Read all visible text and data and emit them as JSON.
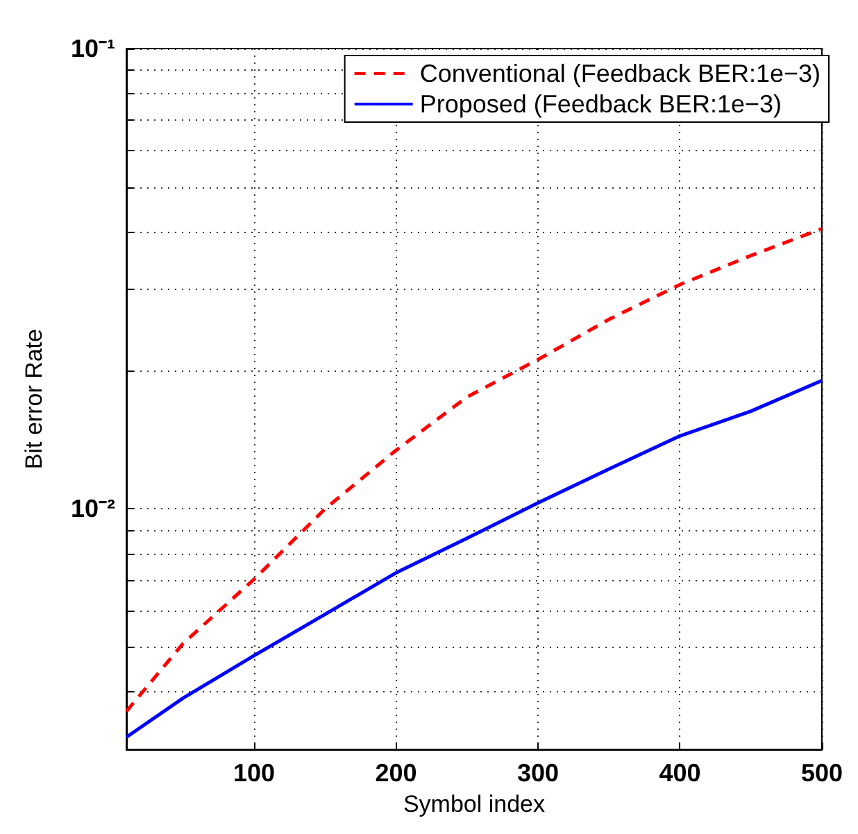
{
  "chart_data": {
    "type": "line",
    "xlabel": "Symbol index",
    "ylabel": "Bit error Rate",
    "log": "y",
    "grid": true,
    "legend": "top right",
    "xlim": [
      10,
      500
    ],
    "xticks": [
      100,
      200,
      300,
      400,
      500
    ],
    "ylim": [
      0.003,
      0.1
    ],
    "yticks": [
      {
        "value": 0.004,
        "label": null
      },
      {
        "value": 0.005,
        "label": null
      },
      {
        "value": 0.006,
        "label": null
      },
      {
        "value": 0.007,
        "label": null
      },
      {
        "value": 0.008,
        "label": null
      },
      {
        "value": 0.009,
        "label": null
      },
      {
        "value": 0.01,
        "label": "10⁻²"
      },
      {
        "value": 0.02,
        "label": null
      },
      {
        "value": 0.03,
        "label": null
      },
      {
        "value": 0.04,
        "label": null
      },
      {
        "value": 0.05,
        "label": null
      },
      {
        "value": 0.06,
        "label": null
      },
      {
        "value": 0.07,
        "label": null
      },
      {
        "value": 0.08,
        "label": null
      },
      {
        "value": 0.09,
        "label": null
      },
      {
        "value": 0.1,
        "label": "10⁻¹"
      }
    ],
    "x": [
      10,
      50,
      100,
      150,
      200,
      250,
      300,
      350,
      400,
      450,
      500
    ],
    "series": [
      {
        "name": "Conventional (Feedback BER:1e−3)",
        "color": "#ff0000",
        "line_style": "dashed",
        "values": [
          0.00363,
          0.0051,
          0.00703,
          0.01,
          0.0134,
          0.0175,
          0.0211,
          0.0258,
          0.0307,
          0.0355,
          0.0406
        ]
      },
      {
        "name": "Proposed (Feedback BER:1e−3)",
        "color": "#0000ff",
        "line_style": "solid",
        "values": [
          0.00319,
          0.00388,
          0.0048,
          0.0059,
          0.00726,
          0.00863,
          0.0103,
          0.0122,
          0.0144,
          0.0163,
          0.019
        ]
      }
    ]
  }
}
